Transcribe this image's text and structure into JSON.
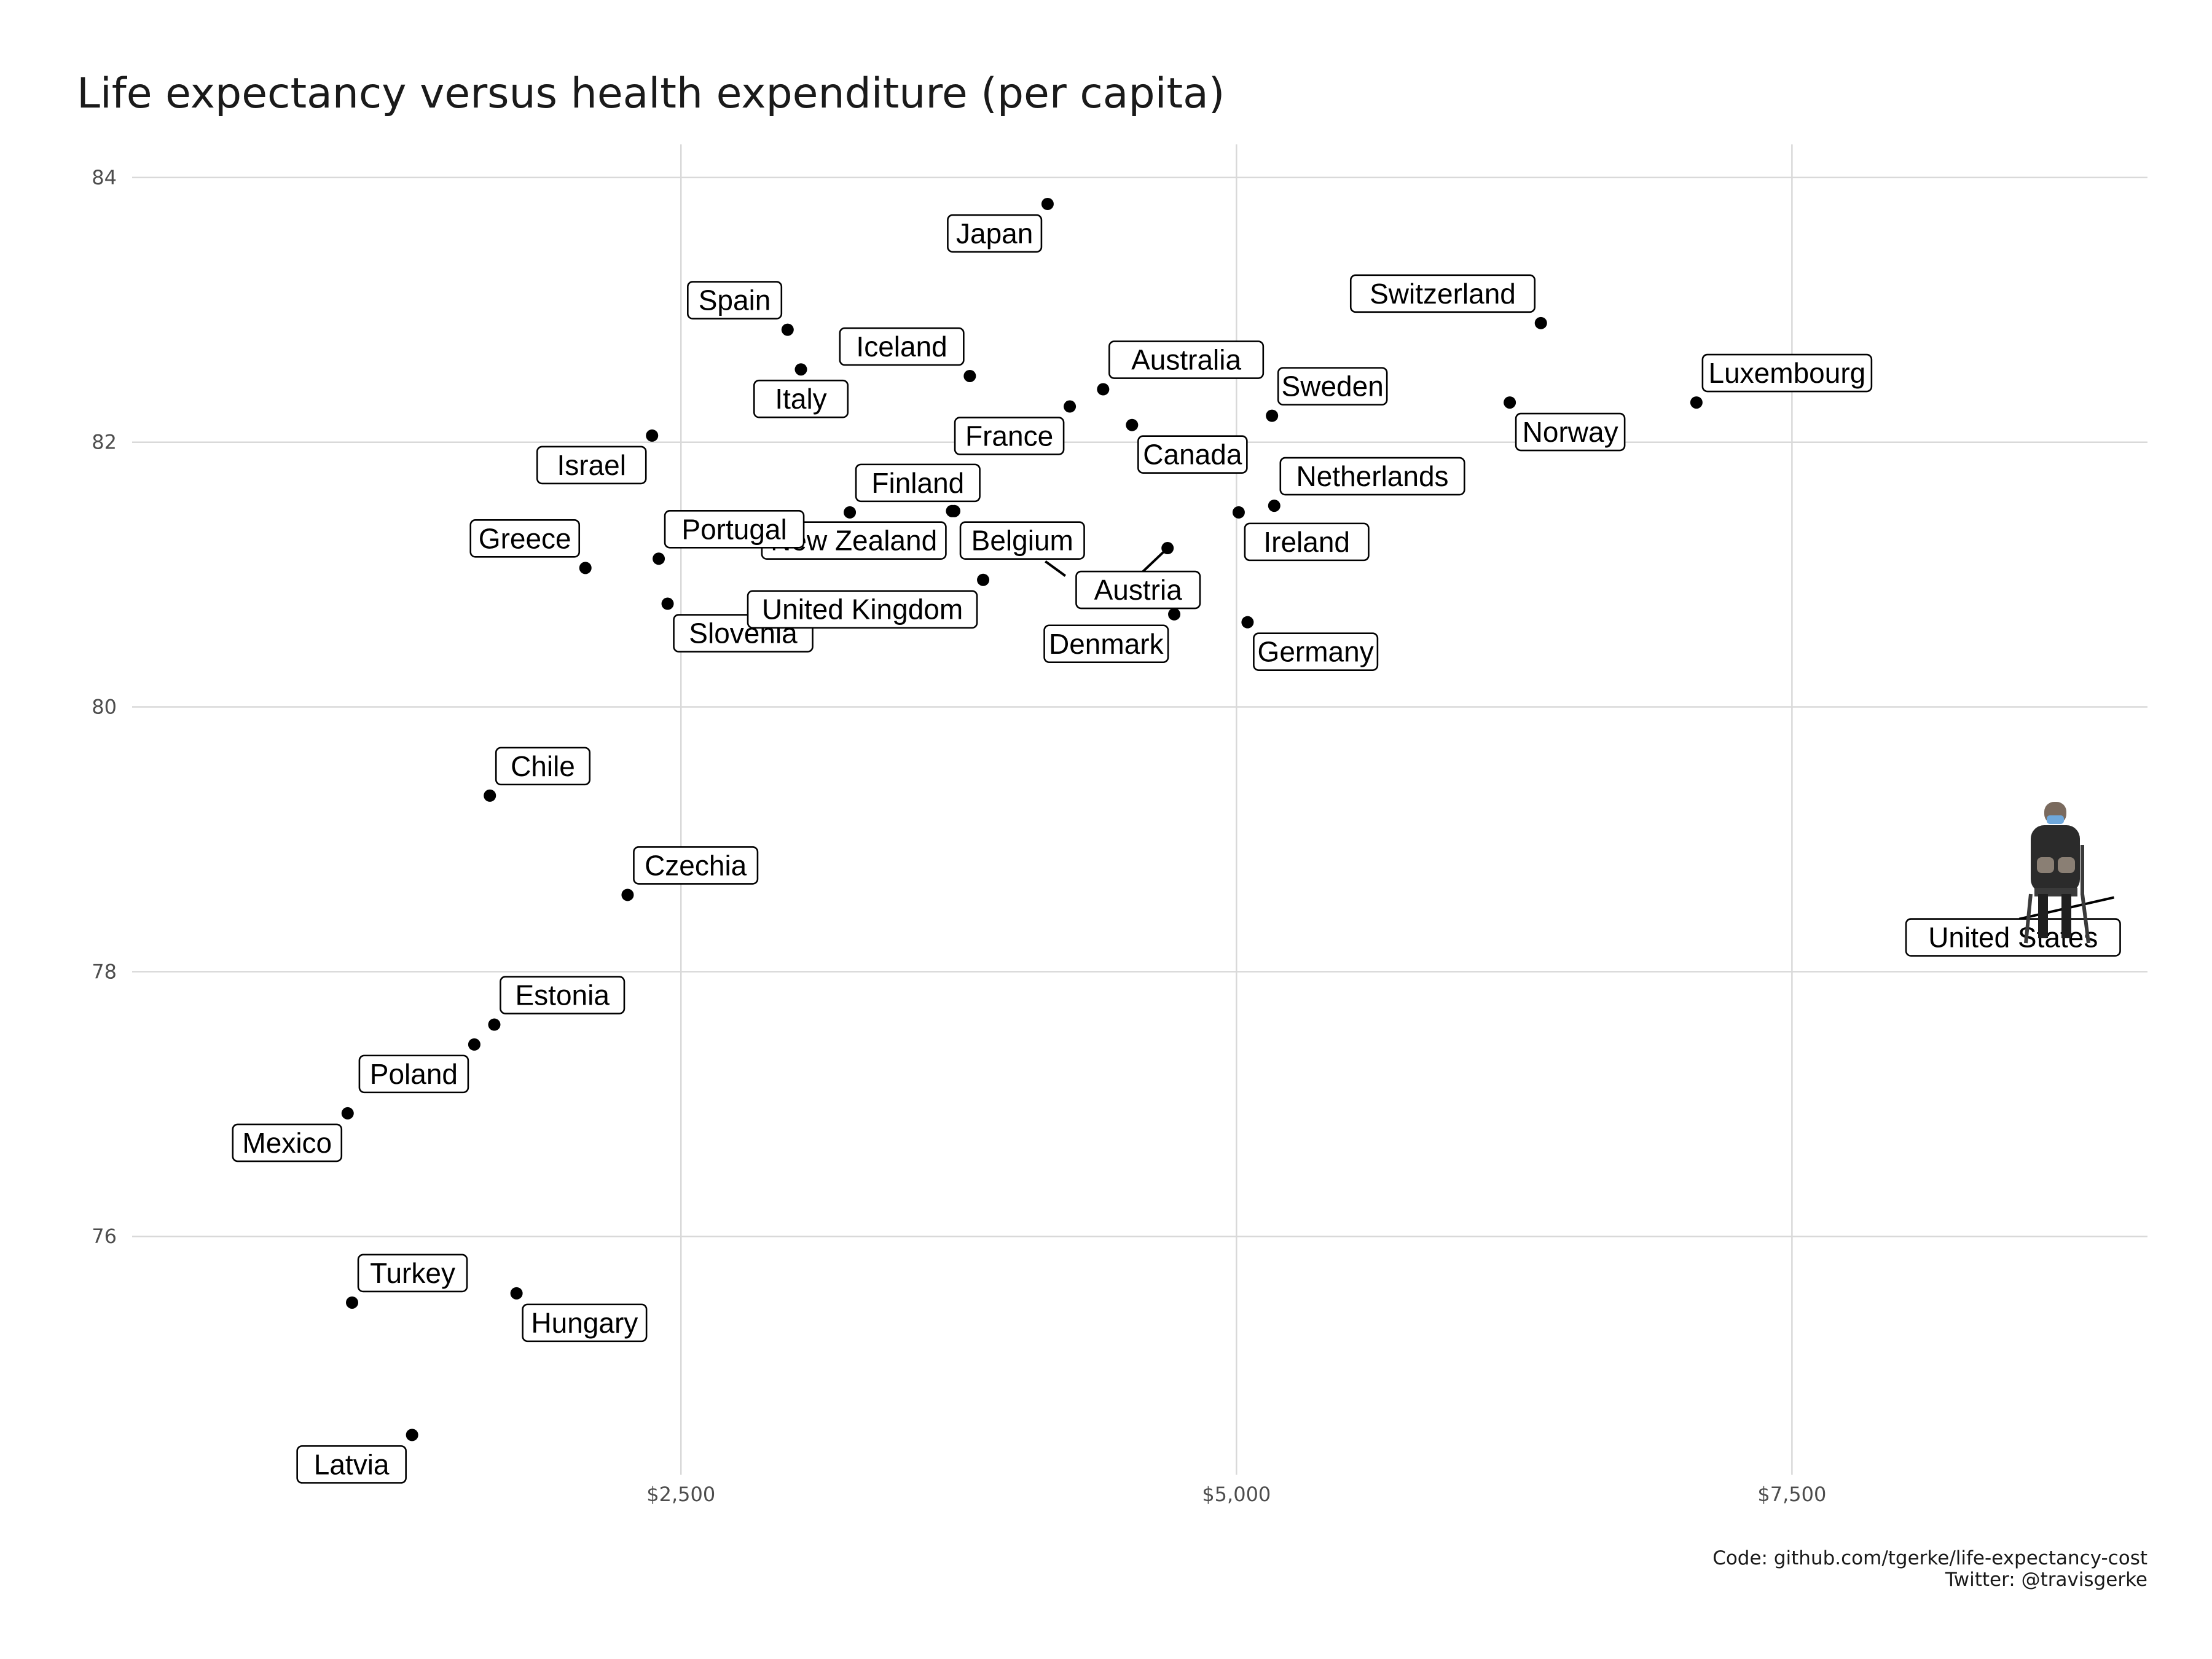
{
  "chart_data": {
    "type": "scatter",
    "title": "Life expectancy versus health expenditure (per capita)",
    "xlabel": "",
    "ylabel": "",
    "xlim": [
      30,
      9100
    ],
    "ylim": [
      74.2,
      84.25
    ],
    "x_ticks": [
      {
        "value": 2500,
        "label": "$2,500"
      },
      {
        "value": 5000,
        "label": "$5,000"
      },
      {
        "value": 7500,
        "label": "$7,500"
      }
    ],
    "y_ticks": [
      {
        "value": 76,
        "label": "76"
      },
      {
        "value": 78,
        "label": "78"
      },
      {
        "value": 80,
        "label": "80"
      },
      {
        "value": 82,
        "label": "82"
      },
      {
        "value": 84,
        "label": "84"
      }
    ],
    "grid": true,
    "points": [
      {
        "name": "Japan",
        "x": 4150,
        "y": 83.8,
        "pos": "below-left"
      },
      {
        "name": "Spain",
        "x": 2980,
        "y": 82.85,
        "pos": "above-left"
      },
      {
        "name": "Italy",
        "x": 3040,
        "y": 82.55,
        "pos": "below"
      },
      {
        "name": "Iceland",
        "x": 3800,
        "y": 82.5,
        "pos": "above-left"
      },
      {
        "name": "Australia",
        "x": 4400,
        "y": 82.4,
        "pos": "above-right"
      },
      {
        "name": "France",
        "x": 4250,
        "y": 82.27,
        "pos": "below-left"
      },
      {
        "name": "Canada",
        "x": 4530,
        "y": 82.13,
        "pos": "below-right"
      },
      {
        "name": "Switzerland",
        "x": 6370,
        "y": 82.9,
        "pos": "above-left"
      },
      {
        "name": "Sweden",
        "x": 5160,
        "y": 82.2,
        "pos": "above-right"
      },
      {
        "name": "Norway",
        "x": 6230,
        "y": 82.3,
        "pos": "below-right"
      },
      {
        "name": "Luxembourg",
        "x": 7070,
        "y": 82.3,
        "pos": "above-right"
      },
      {
        "name": "Israel",
        "x": 2370,
        "y": 82.05,
        "pos": "below-left"
      },
      {
        "name": "Finland",
        "x": 3260,
        "y": 81.47,
        "pos": "above-right"
      },
      {
        "name": "New Zealand",
        "x": 3720,
        "y": 81.48,
        "pos": "below-left"
      },
      {
        "name": "Belgium",
        "x": 3730,
        "y": 81.48,
        "pos": "below-right"
      },
      {
        "name": "Austria",
        "x": 4690,
        "y": 81.2,
        "pos": "below-left"
      },
      {
        "name": "Netherlands",
        "x": 5170,
        "y": 81.52,
        "pos": "above-right"
      },
      {
        "name": "Ireland",
        "x": 5010,
        "y": 81.47,
        "pos": "below-right"
      },
      {
        "name": "Greece",
        "x": 2070,
        "y": 81.05,
        "pos": "above-left"
      },
      {
        "name": "Portugal",
        "x": 2400,
        "y": 81.12,
        "pos": "above-right"
      },
      {
        "name": "Slovenia",
        "x": 2440,
        "y": 80.78,
        "pos": "below-right"
      },
      {
        "name": "United Kingdom",
        "x": 3860,
        "y": 80.96,
        "pos": "below-left"
      },
      {
        "name": "Denmark",
        "x": 4720,
        "y": 80.7,
        "pos": "below-left"
      },
      {
        "name": "Germany",
        "x": 5050,
        "y": 80.64,
        "pos": "below-right"
      },
      {
        "name": "Chile",
        "x": 1640,
        "y": 79.33,
        "pos": "above-right"
      },
      {
        "name": "Czechia",
        "x": 2260,
        "y": 78.58,
        "pos": "above-right"
      },
      {
        "name": "United States",
        "x": 9060,
        "y": 78.7,
        "pos": "below-left"
      },
      {
        "name": "Estonia",
        "x": 1660,
        "y": 77.6,
        "pos": "above-right"
      },
      {
        "name": "Poland",
        "x": 1570,
        "y": 77.45,
        "pos": "below-left"
      },
      {
        "name": "Mexico",
        "x": 1000,
        "y": 76.93,
        "pos": "below-left"
      },
      {
        "name": "Turkey",
        "x": 1020,
        "y": 75.5,
        "pos": "above-right"
      },
      {
        "name": "Hungary",
        "x": 1760,
        "y": 75.57,
        "pos": "below-right"
      },
      {
        "name": "Latvia",
        "x": 1290,
        "y": 74.5,
        "pos": "below-left"
      }
    ],
    "annotation_image": "person-sitting-icon"
  },
  "caption": {
    "line1": "Code: github.com/tgerke/life-expectancy-cost",
    "line2": "Twitter: @travisgerke"
  }
}
